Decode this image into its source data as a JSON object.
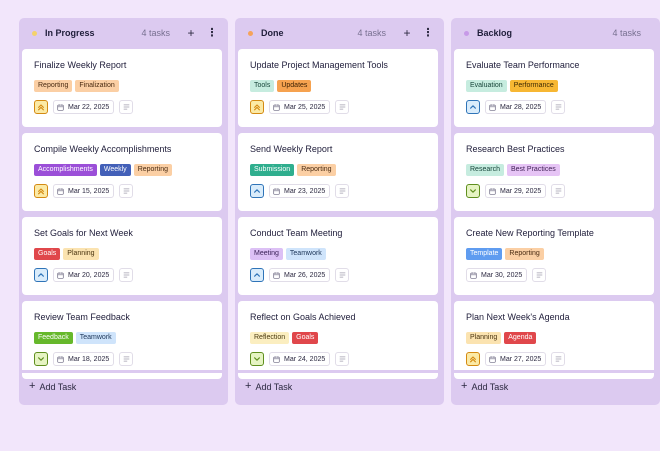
{
  "columns": [
    {
      "title": "In Progress",
      "count": "4 tasks",
      "dot_color": "#f4d26b",
      "add_label": "Add Task",
      "show_plus": true,
      "show_menu": true,
      "cards": [
        {
          "title": "Finalize Weekly Report",
          "tags": [
            {
              "label": "Reporting",
              "bg": "#fbcfa4",
              "fg": "#4a2b12"
            },
            {
              "label": "Finalization",
              "bg": "#fbcfa4",
              "fg": "#4a2b12"
            }
          ],
          "priority": "high",
          "date": "Mar 22, 2025"
        },
        {
          "title": "Compile Weekly Accomplishments",
          "tags": [
            {
              "label": "Accomplishments",
              "bg": "#9b4fd8",
              "fg": "#ffffff"
            },
            {
              "label": "Weekly",
              "bg": "#4360b8",
              "fg": "#ffffff"
            },
            {
              "label": "Reporting",
              "bg": "#fbcfa4",
              "fg": "#4a2b12"
            }
          ],
          "priority": "high",
          "date": "Mar 15, 2025"
        },
        {
          "title": "Set Goals for Next Week",
          "tags": [
            {
              "label": "Goals",
              "bg": "#e0474b",
              "fg": "#ffffff"
            },
            {
              "label": "Planning",
              "bg": "#fbe3b0",
              "fg": "#4a3410"
            }
          ],
          "priority": "medium",
          "date": "Mar 20, 2025"
        },
        {
          "title": "Review Team Feedback",
          "tags": [
            {
              "label": "Feedback",
              "bg": "#66b82b",
              "fg": "#ffffff"
            },
            {
              "label": "Teamwork",
              "bg": "#cfe4fb",
              "fg": "#1c3558"
            }
          ],
          "priority": "low",
          "date": "Mar 18, 2025"
        }
      ]
    },
    {
      "title": "Done",
      "count": "4 tasks",
      "dot_color": "#f5a35a",
      "add_label": "Add Task",
      "show_plus": true,
      "show_menu": true,
      "cards": [
        {
          "title": "Update Project Management Tools",
          "tags": [
            {
              "label": "Tools",
              "bg": "#c6ecdf",
              "fg": "#17453a"
            },
            {
              "label": "Updates",
              "bg": "#f6a24f",
              "fg": "#3d2104"
            }
          ],
          "priority": "high",
          "date": "Mar 25, 2025"
        },
        {
          "title": "Send Weekly Report",
          "tags": [
            {
              "label": "Submission",
              "bg": "#2fae8e",
              "fg": "#ffffff"
            },
            {
              "label": "Reporting",
              "bg": "#fbcfa4",
              "fg": "#4a2b12"
            }
          ],
          "priority": "medium",
          "date": "Mar 23, 2025"
        },
        {
          "title": "Conduct Team Meeting",
          "tags": [
            {
              "label": "Meeting",
              "bg": "#dcc0f5",
              "fg": "#3b2157"
            },
            {
              "label": "Teamwork",
              "bg": "#cfe4fb",
              "fg": "#1c3558"
            }
          ],
          "priority": "medium",
          "date": "Mar 26, 2025"
        },
        {
          "title": "Reflect on Goals Achieved",
          "tags": [
            {
              "label": "Reflection",
              "bg": "#fbeec0",
              "fg": "#4a3a10"
            },
            {
              "label": "Goals",
              "bg": "#e0474b",
              "fg": "#ffffff"
            }
          ],
          "priority": "low",
          "date": "Mar 24, 2025"
        }
      ]
    },
    {
      "title": "Backlog",
      "count": "4 tasks",
      "dot_color": "#c79ae8",
      "add_label": "Add Task",
      "show_plus": false,
      "show_menu": false,
      "cards": [
        {
          "title": "Evaluate Team Performance",
          "tags": [
            {
              "label": "Evaluation",
              "bg": "#c6ecdf",
              "fg": "#17453a"
            },
            {
              "label": "Performance",
              "bg": "#f7b733",
              "fg": "#3d2a04"
            }
          ],
          "priority": "medium",
          "date": "Mar 28, 2025"
        },
        {
          "title": "Research Best Practices",
          "tags": [
            {
              "label": "Research",
              "bg": "#c6ecdf",
              "fg": "#17453a"
            },
            {
              "label": "Best Practices",
              "bg": "#e6c4f5",
              "fg": "#3f1f55"
            }
          ],
          "priority": "low",
          "date": "Mar 29, 2025"
        },
        {
          "title": "Create New Reporting Template",
          "tags": [
            {
              "label": "Template",
              "bg": "#5f9cf0",
              "fg": "#ffffff"
            },
            {
              "label": "Reporting",
              "bg": "#fbcfa4",
              "fg": "#4a2b12"
            }
          ],
          "priority": "none",
          "date": "Mar 30, 2025"
        },
        {
          "title": "Plan Next Week's Agenda",
          "tags": [
            {
              "label": "Planning",
              "bg": "#fbe3b0",
              "fg": "#4a3410"
            },
            {
              "label": "Agenda",
              "bg": "#e0474b",
              "fg": "#ffffff"
            }
          ],
          "priority": "high",
          "date": "Mar 27, 2025"
        }
      ]
    }
  ],
  "priority_styles": {
    "high": {
      "bg": "#fbeaa6",
      "fg": "#d48a12"
    },
    "medium": {
      "bg": "#d9ecfb",
      "fg": "#2f74b8"
    },
    "low": {
      "bg": "#e6f4c3",
      "fg": "#5f8f1e"
    }
  }
}
